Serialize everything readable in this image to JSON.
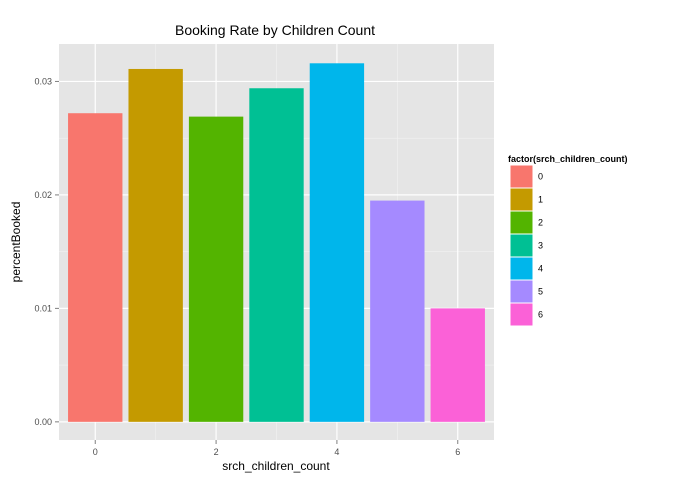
{
  "chart_data": {
    "type": "bar",
    "title": "Booking Rate by Children Count",
    "xlabel": "srch_children_count",
    "ylabel": "percentBooked",
    "categories": [
      0,
      1,
      2,
      3,
      4,
      5,
      6
    ],
    "values": [
      0.0272,
      0.0311,
      0.0269,
      0.0294,
      0.0316,
      0.0195,
      0.01
    ],
    "colors": [
      "#F8766D",
      "#C49A00",
      "#53B400",
      "#00C094",
      "#00B6EB",
      "#A58AFF",
      "#FB61D7"
    ],
    "xlim": [
      -0.6,
      6.6
    ],
    "ylim": [
      -0.0016,
      0.0333
    ],
    "x_ticks": [
      0,
      2,
      4,
      6
    ],
    "x_tick_labels": [
      "0",
      "2",
      "4",
      "6"
    ],
    "y_ticks": [
      0.0,
      0.01,
      0.02,
      0.03
    ],
    "y_tick_labels": [
      "0.00",
      "0.01",
      "0.02",
      "0.03"
    ],
    "grid": true,
    "panel_background": "#E5E5E5",
    "legend": {
      "title": "factor(srch_children_count)",
      "position": "right",
      "entries": [
        "0",
        "1",
        "2",
        "3",
        "4",
        "5",
        "6"
      ]
    }
  }
}
